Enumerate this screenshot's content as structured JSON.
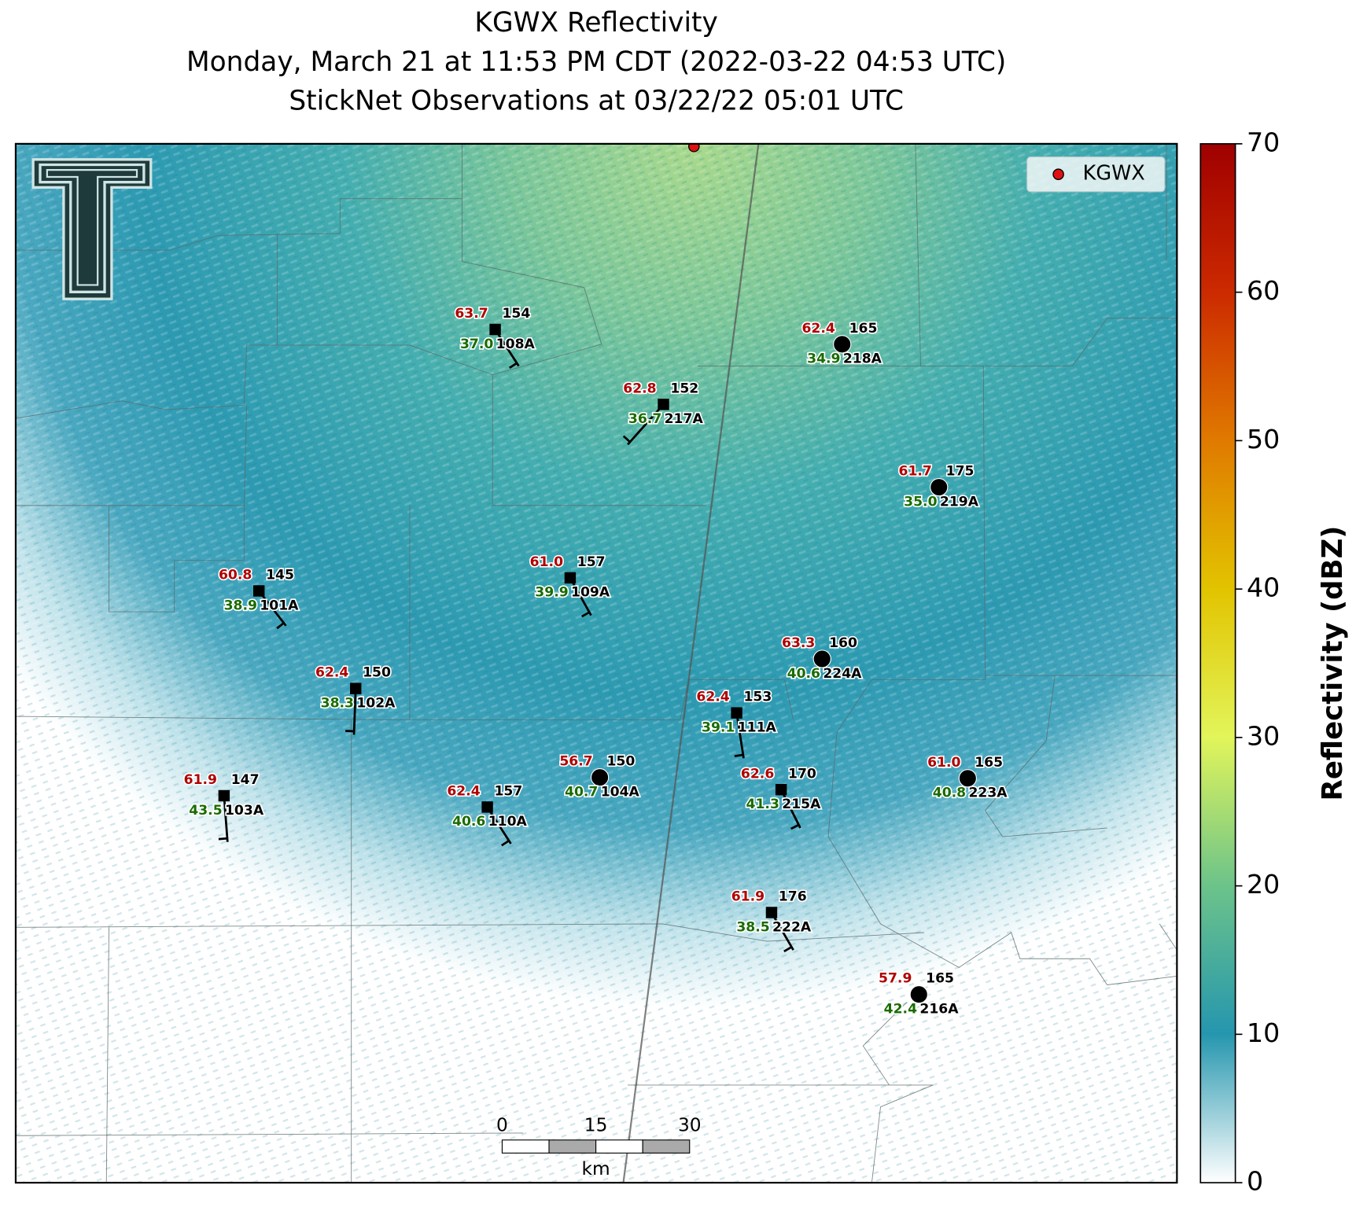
{
  "title": {
    "line1": "KGWX Reflectivity",
    "line2": "Monday, March 21 at 11:53 PM CDT (2022-03-22 04:53 UTC)",
    "line3": "StickNet Observations at 03/22/22 05:01 UTC"
  },
  "legend": {
    "label": "KGWX"
  },
  "colorbar": {
    "label": "Reflectivity (dBZ)",
    "lim": [
      0,
      70
    ],
    "ticks": [
      0,
      10,
      20,
      30,
      40,
      50,
      60,
      70
    ]
  },
  "scale_bar": {
    "lim": [
      0,
      30
    ],
    "ticks": [
      0,
      15,
      30
    ],
    "unit": "km"
  },
  "stations": [
    {
      "id": "108A",
      "temperature": "63.7",
      "dewpoint": "37.0",
      "pressure": "154"
    },
    {
      "id": "217A",
      "temperature": "62.8",
      "dewpoint": "36.7",
      "pressure": "152"
    },
    {
      "id": "218A",
      "temperature": "62.4",
      "dewpoint": "34.9",
      "pressure": "165"
    },
    {
      "id": "219A",
      "temperature": "61.7",
      "dewpoint": "35.0",
      "pressure": "175"
    },
    {
      "id": "101A",
      "temperature": "60.8",
      "dewpoint": "38.9",
      "pressure": "145"
    },
    {
      "id": "109A",
      "temperature": "61.0",
      "dewpoint": "39.9",
      "pressure": "157"
    },
    {
      "id": "224A",
      "temperature": "63.3",
      "dewpoint": "40.6",
      "pressure": "160"
    },
    {
      "id": "102A",
      "temperature": "62.4",
      "dewpoint": "38.3",
      "pressure": "150"
    },
    {
      "id": "111A",
      "temperature": "62.4",
      "dewpoint": "39.1",
      "pressure": "153"
    },
    {
      "id": "104A",
      "temperature": "56.7",
      "dewpoint": "40.7",
      "pressure": "150"
    },
    {
      "id": "215A",
      "temperature": "62.6",
      "dewpoint": "41.3",
      "pressure": "170"
    },
    {
      "id": "223A",
      "temperature": "61.0",
      "dewpoint": "40.8",
      "pressure": "165"
    },
    {
      "id": "103A",
      "temperature": "61.9",
      "dewpoint": "43.5",
      "pressure": "147"
    },
    {
      "id": "110A",
      "temperature": "62.4",
      "dewpoint": "40.6",
      "pressure": "157"
    },
    {
      "id": "222A",
      "temperature": "61.9",
      "dewpoint": "38.5",
      "pressure": "176"
    },
    {
      "id": "216A",
      "temperature": "57.9",
      "dewpoint": "42.4",
      "pressure": "165"
    }
  ]
}
